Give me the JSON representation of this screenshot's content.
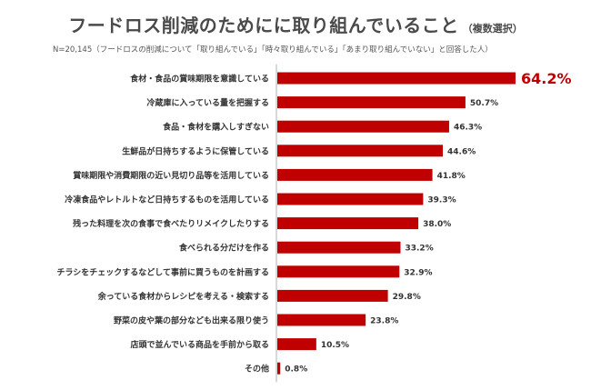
{
  "header": {
    "title": "フードロス削減のためにに取り組んでいること",
    "title_suffix": "（複数選択）",
    "note": "N=20,145（フードロスの削減について「取り組んでいる」「時々取り組んでいる」「あまり取り組んでいない」と回答した人）"
  },
  "colors": {
    "bar": "#c00000",
    "highlight_text": "#c00000",
    "axis": "#b0b0b0"
  },
  "chart_data": {
    "type": "bar",
    "orientation": "horizontal",
    "unit": "%",
    "categories": [
      "食材・食品の賞味期限を意識している",
      "冷蔵庫に入っている量を把握する",
      "食品・食材を購入しすぎない",
      "生鮮品が日持ちするように保管している",
      "賞味期限や消費期限の近い見切り品等を活用している",
      "冷凍食品やレトルトなど日持ちするものを活用している",
      "残った料理を次の食事で食べたりリメイクしたりする",
      "食べられる分だけを作る",
      "チラシをチェックするなどして事前に買うものを計画する",
      "余っている食材からレシピを考える・検索する",
      "野菜の皮や葉の部分なども出来る限り使う",
      "店頭で並んでいる商品を手前から取る",
      "その他"
    ],
    "values": [
      64.2,
      50.7,
      46.3,
      44.6,
      41.8,
      39.3,
      38.0,
      33.2,
      32.9,
      29.8,
      23.8,
      10.5,
      0.8
    ],
    "value_labels": [
      "64.2%",
      "50.7%",
      "46.3%",
      "44.6%",
      "41.8%",
      "39.3%",
      "38.0%",
      "33.2%",
      "32.9%",
      "29.8%",
      "23.8%",
      "10.5%",
      "0.8%"
    ],
    "xlim": [
      0,
      64.2
    ],
    "highlight_index": 0,
    "grid": false
  }
}
